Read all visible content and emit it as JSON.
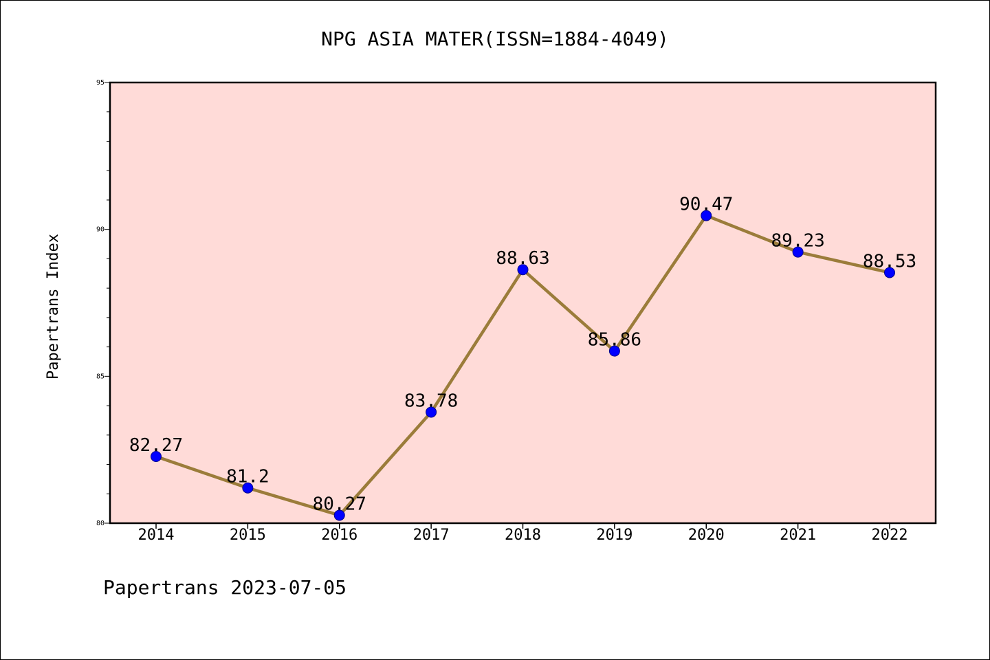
{
  "chart_data": {
    "type": "line",
    "title": "NPG ASIA MATER(ISSN=1884-4049)",
    "xlabel": "",
    "ylabel": "Papertrans Index",
    "categories": [
      "2014",
      "2015",
      "2016",
      "2017",
      "2018",
      "2019",
      "2020",
      "2021",
      "2022"
    ],
    "values": [
      82.27,
      81.2,
      80.27,
      83.78,
      88.63,
      85.86,
      90.47,
      89.23,
      88.53
    ],
    "data_labels": [
      "82.27",
      "81.2",
      "80.27",
      "83.78",
      "88.63",
      "85.86",
      "90.47",
      "89.23",
      "88.53"
    ],
    "ylim": [
      80,
      95
    ],
    "yticks": [
      "80",
      "85",
      "90",
      "95"
    ],
    "grid": false,
    "legend": "none",
    "colors": {
      "plot_background": "#FFDBD8",
      "line": "#9B7C3A",
      "marker": "#0000FF"
    }
  },
  "footer": "Papertrans 2023-07-05"
}
